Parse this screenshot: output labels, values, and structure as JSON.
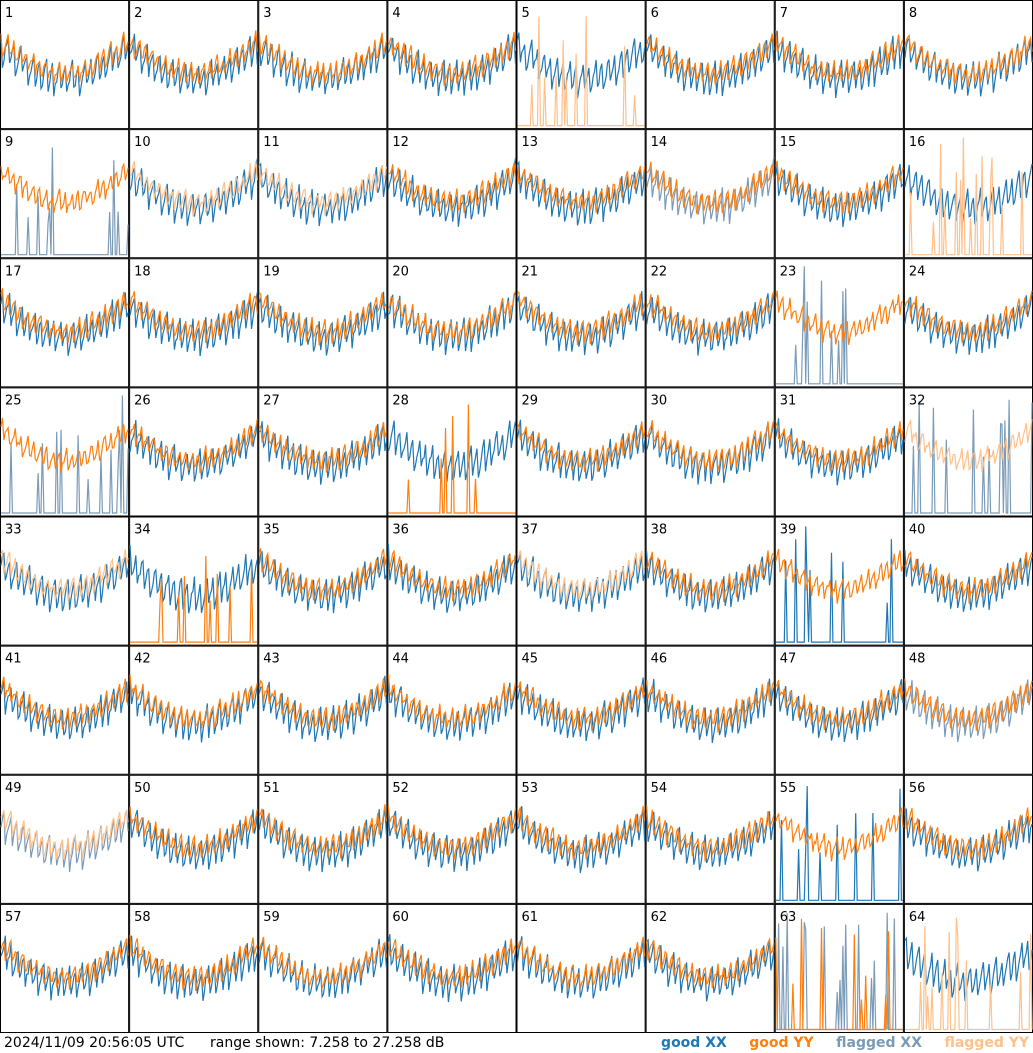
{
  "chart_data": {
    "type": "line",
    "panels": [
      {
        "label": "1",
        "xx": "good",
        "yy": "good"
      },
      {
        "label": "2",
        "xx": "good",
        "yy": "good"
      },
      {
        "label": "3",
        "xx": "good",
        "yy": "good"
      },
      {
        "label": "4",
        "xx": "good",
        "yy": "good"
      },
      {
        "label": "5",
        "xx": "good",
        "yy": "flagged"
      },
      {
        "label": "6",
        "xx": "good",
        "yy": "good"
      },
      {
        "label": "7",
        "xx": "good",
        "yy": "good"
      },
      {
        "label": "8",
        "xx": "good",
        "yy": "good"
      },
      {
        "label": "9",
        "xx": "flagged",
        "yy": "good"
      },
      {
        "label": "10",
        "xx": "good",
        "yy": "flagged"
      },
      {
        "label": "11",
        "xx": "good",
        "yy": "flagged"
      },
      {
        "label": "12",
        "xx": "good",
        "yy": "good"
      },
      {
        "label": "13",
        "xx": "good",
        "yy": "good"
      },
      {
        "label": "14",
        "xx": "flagged",
        "yy": "good"
      },
      {
        "label": "15",
        "xx": "good",
        "yy": "good"
      },
      {
        "label": "16",
        "xx": "good",
        "yy": "flagged"
      },
      {
        "label": "17",
        "xx": "good",
        "yy": "good"
      },
      {
        "label": "18",
        "xx": "good",
        "yy": "good"
      },
      {
        "label": "19",
        "xx": "good",
        "yy": "good"
      },
      {
        "label": "20",
        "xx": "good",
        "yy": "good"
      },
      {
        "label": "21",
        "xx": "good",
        "yy": "good"
      },
      {
        "label": "22",
        "xx": "good",
        "yy": "good"
      },
      {
        "label": "23",
        "xx": "flagged",
        "yy": "good"
      },
      {
        "label": "24",
        "xx": "good",
        "yy": "good"
      },
      {
        "label": "25",
        "xx": "flagged",
        "yy": "good"
      },
      {
        "label": "26",
        "xx": "good",
        "yy": "good"
      },
      {
        "label": "27",
        "xx": "good",
        "yy": "good"
      },
      {
        "label": "28",
        "xx": "good",
        "yy": "good"
      },
      {
        "label": "29",
        "xx": "good",
        "yy": "good"
      },
      {
        "label": "30",
        "xx": "good",
        "yy": "good"
      },
      {
        "label": "31",
        "xx": "good",
        "yy": "good"
      },
      {
        "label": "32",
        "xx": "flagged",
        "yy": "flagged"
      },
      {
        "label": "33",
        "xx": "good",
        "yy": "flagged"
      },
      {
        "label": "34",
        "xx": "good",
        "yy": "good"
      },
      {
        "label": "35",
        "xx": "good",
        "yy": "good"
      },
      {
        "label": "36",
        "xx": "good",
        "yy": "good"
      },
      {
        "label": "37",
        "xx": "good",
        "yy": "flagged"
      },
      {
        "label": "38",
        "xx": "good",
        "yy": "good"
      },
      {
        "label": "39",
        "xx": "good",
        "yy": "good"
      },
      {
        "label": "40",
        "xx": "good",
        "yy": "good"
      },
      {
        "label": "41",
        "xx": "good",
        "yy": "good"
      },
      {
        "label": "42",
        "xx": "good",
        "yy": "good"
      },
      {
        "label": "43",
        "xx": "good",
        "yy": "good"
      },
      {
        "label": "44",
        "xx": "good",
        "yy": "good"
      },
      {
        "label": "45",
        "xx": "good",
        "yy": "good"
      },
      {
        "label": "46",
        "xx": "good",
        "yy": "good"
      },
      {
        "label": "47",
        "xx": "good",
        "yy": "good"
      },
      {
        "label": "48",
        "xx": "flagged",
        "yy": "good"
      },
      {
        "label": "49",
        "xx": "flagged",
        "yy": "flagged"
      },
      {
        "label": "50",
        "xx": "good",
        "yy": "good"
      },
      {
        "label": "51",
        "xx": "good",
        "yy": "good"
      },
      {
        "label": "52",
        "xx": "good",
        "yy": "good"
      },
      {
        "label": "53",
        "xx": "good",
        "yy": "good"
      },
      {
        "label": "54",
        "xx": "good",
        "yy": "good"
      },
      {
        "label": "55",
        "xx": "good",
        "yy": "good"
      },
      {
        "label": "56",
        "xx": "good",
        "yy": "good"
      },
      {
        "label": "57",
        "xx": "good",
        "yy": "good"
      },
      {
        "label": "58",
        "xx": "good",
        "yy": "good"
      },
      {
        "label": "59",
        "xx": "good",
        "yy": "good"
      },
      {
        "label": "60",
        "xx": "good",
        "yy": "good"
      },
      {
        "label": "61",
        "xx": "good",
        "yy": "good"
      },
      {
        "label": "62",
        "xx": "good",
        "yy": "good"
      },
      {
        "label": "63",
        "xx": "flagged",
        "yy": "good"
      },
      {
        "label": "64",
        "xx": "good",
        "yy": "flagged"
      }
    ],
    "y_range_db": [
      7.258,
      27.258
    ],
    "grid": false,
    "legend_placement": "bottom-right",
    "legend": [
      {
        "name": "good XX",
        "color": "#1f77b4"
      },
      {
        "name": "good YY",
        "color": "#ff7f0e"
      },
      {
        "name": "flagged XX",
        "color": "#7a9bb8"
      },
      {
        "name": "flagged YY",
        "color": "#ffc08a"
      }
    ]
  },
  "footer": {
    "timestamp": "2024/11/09 20:56:05 UTC",
    "range": "range shown: 7.258 to 27.258 dB"
  }
}
